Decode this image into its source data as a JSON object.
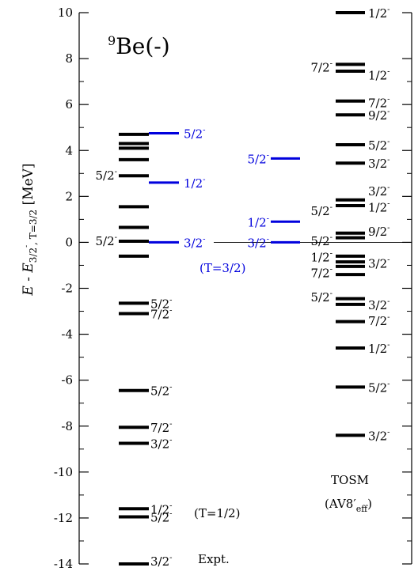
{
  "chart_data": {
    "type": "level-scheme",
    "title": "⁹Be(-)",
    "ylabel": "E - E3/2-, T=3/2 [MeV]",
    "ylim": [
      -14,
      10
    ],
    "yticks": [
      10,
      8,
      6,
      4,
      2,
      0,
      -2,
      -4,
      -6,
      -8,
      -10,
      -12,
      -14
    ],
    "ytick_labels": [
      "10",
      "8",
      "6",
      "4",
      "2",
      "0",
      "-2",
      "-4",
      "-6",
      "-8",
      "-10",
      "-12",
      "-14"
    ],
    "colors": {
      "black": "#000000",
      "blue": "#0000dd",
      "axis": "#000000"
    },
    "columns": [
      {
        "name": "Expt.",
        "labels": [
          "Expt.",
          "(T=1/2)"
        ],
        "levels": [
          {
            "e": 4.7,
            "color": "black",
            "label": ""
          },
          {
            "e": 4.3,
            "color": "black",
            "label": ""
          },
          {
            "e": 4.1,
            "color": "black",
            "label": ""
          },
          {
            "e": 3.6,
            "color": "black",
            "label": ""
          },
          {
            "e": 2.9,
            "color": "black",
            "label": "5/2",
            "side": "left"
          },
          {
            "e": 1.55,
            "color": "black",
            "label": ""
          },
          {
            "e": 0.65,
            "color": "black",
            "label": ""
          },
          {
            "e": 0.05,
            "color": "black",
            "label": "5/2",
            "side": "left"
          },
          {
            "e": -0.6,
            "color": "black",
            "label": ""
          },
          {
            "e": -2.65,
            "color": "black",
            "label": "5/2",
            "side": "right"
          },
          {
            "e": -3.1,
            "color": "black",
            "label": "7/2",
            "side": "right"
          },
          {
            "e": -6.45,
            "color": "black",
            "label": "5/2",
            "side": "right"
          },
          {
            "e": -8.05,
            "color": "black",
            "label": "7/2",
            "side": "right"
          },
          {
            "e": -8.75,
            "color": "black",
            "label": "3/2",
            "side": "right"
          },
          {
            "e": -11.6,
            "color": "black",
            "label": "1/2",
            "side": "right"
          },
          {
            "e": -11.95,
            "color": "black",
            "label": "5/2",
            "side": "right"
          },
          {
            "e": -14.0,
            "color": "black",
            "label": "3/2",
            "side": "right"
          }
        ],
        "blue_levels": [
          {
            "e": 4.75,
            "color": "blue",
            "label": "5/2",
            "side": "right"
          },
          {
            "e": 2.6,
            "color": "blue",
            "label": "1/2",
            "side": "right"
          },
          {
            "e": 0.0,
            "color": "blue",
            "label": "3/2",
            "side": "right"
          }
        ]
      },
      {
        "name": "TOSM T=3/2",
        "labels": [
          "(T=3/2)"
        ],
        "levels": [
          {
            "e": 3.65,
            "color": "blue",
            "label": "5/2",
            "side": "left"
          },
          {
            "e": 0.9,
            "color": "blue",
            "label": "1/2",
            "side": "left"
          },
          {
            "e": 0.0,
            "color": "blue",
            "label": "3/2",
            "side": "left"
          }
        ]
      },
      {
        "name": "TOSM",
        "labels": [
          "TOSM",
          "(AV8′eff)"
        ],
        "left_labels": [
          {
            "e": 7.6,
            "label": "7/2"
          },
          {
            "e": 1.35,
            "label": "5/2"
          },
          {
            "e": 0.05,
            "label": "5/2"
          },
          {
            "e": -0.65,
            "label": "1/2"
          },
          {
            "e": -1.35,
            "label": "7/2"
          },
          {
            "e": -2.4,
            "label": "5/2"
          }
        ],
        "right_labels": [
          {
            "e": 10.0,
            "label": "1/2"
          },
          {
            "e": 7.3,
            "label": "1/2"
          },
          {
            "e": 6.1,
            "label": "7/2"
          },
          {
            "e": 5.55,
            "label": "9/2"
          },
          {
            "e": 4.25,
            "label": "5/2"
          },
          {
            "e": 3.45,
            "label": "3/2"
          },
          {
            "e": 2.25,
            "label": "3/2"
          },
          {
            "e": 1.55,
            "label": "1/2"
          },
          {
            "e": 0.5,
            "label": "9/2"
          },
          {
            "e": -0.9,
            "label": "3/2"
          },
          {
            "e": -2.7,
            "label": "3/2"
          },
          {
            "e": -3.4,
            "label": "7/2"
          },
          {
            "e": -4.6,
            "label": "1/2"
          },
          {
            "e": -6.3,
            "label": "5/2"
          },
          {
            "e": -8.4,
            "label": "3/2"
          }
        ],
        "levels": [
          {
            "e": 10.0,
            "color": "black"
          },
          {
            "e": 7.75,
            "color": "black"
          },
          {
            "e": 7.45,
            "color": "black"
          },
          {
            "e": 6.15,
            "color": "black"
          },
          {
            "e": 5.55,
            "color": "black"
          },
          {
            "e": 4.25,
            "color": "black"
          },
          {
            "e": 3.45,
            "color": "black"
          },
          {
            "e": 1.85,
            "color": "black"
          },
          {
            "e": 1.6,
            "color": "black"
          },
          {
            "e": 0.4,
            "color": "black"
          },
          {
            "e": 0.2,
            "color": "black"
          },
          {
            "e": -0.6,
            "color": "black"
          },
          {
            "e": -0.85,
            "color": "black"
          },
          {
            "e": -1.05,
            "color": "black"
          },
          {
            "e": -1.4,
            "color": "black"
          },
          {
            "e": -2.45,
            "color": "black"
          },
          {
            "e": -2.7,
            "color": "black"
          },
          {
            "e": -3.45,
            "color": "black"
          },
          {
            "e": -4.6,
            "color": "black"
          },
          {
            "e": -6.3,
            "color": "black"
          },
          {
            "e": -8.4,
            "color": "black"
          }
        ]
      }
    ]
  }
}
